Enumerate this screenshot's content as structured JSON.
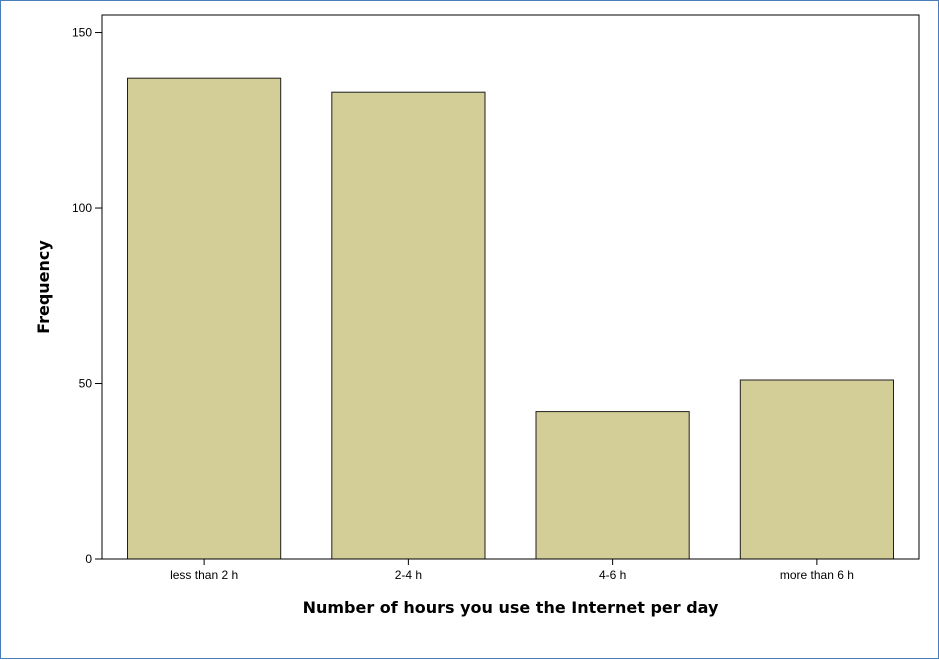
{
  "colors": {
    "bar_fill": "#d3cd98",
    "bar_stroke": "#1f1f1f",
    "axis": "#000000",
    "frame_border": "#4a7ebb"
  },
  "chart_data": {
    "type": "bar",
    "title": "",
    "xlabel": "Number of hours you use the Internet per day",
    "ylabel": "Frequency",
    "categories": [
      "less than 2 h",
      "2-4 h",
      "4-6 h",
      "more than 6 h"
    ],
    "values": [
      137,
      133,
      42,
      51
    ],
    "ylim": [
      0,
      155
    ],
    "yticks": [
      0,
      50,
      100,
      150
    ],
    "ytick_labels": [
      "0",
      "50",
      "100",
      "150"
    ],
    "grid": false,
    "legend": false
  }
}
